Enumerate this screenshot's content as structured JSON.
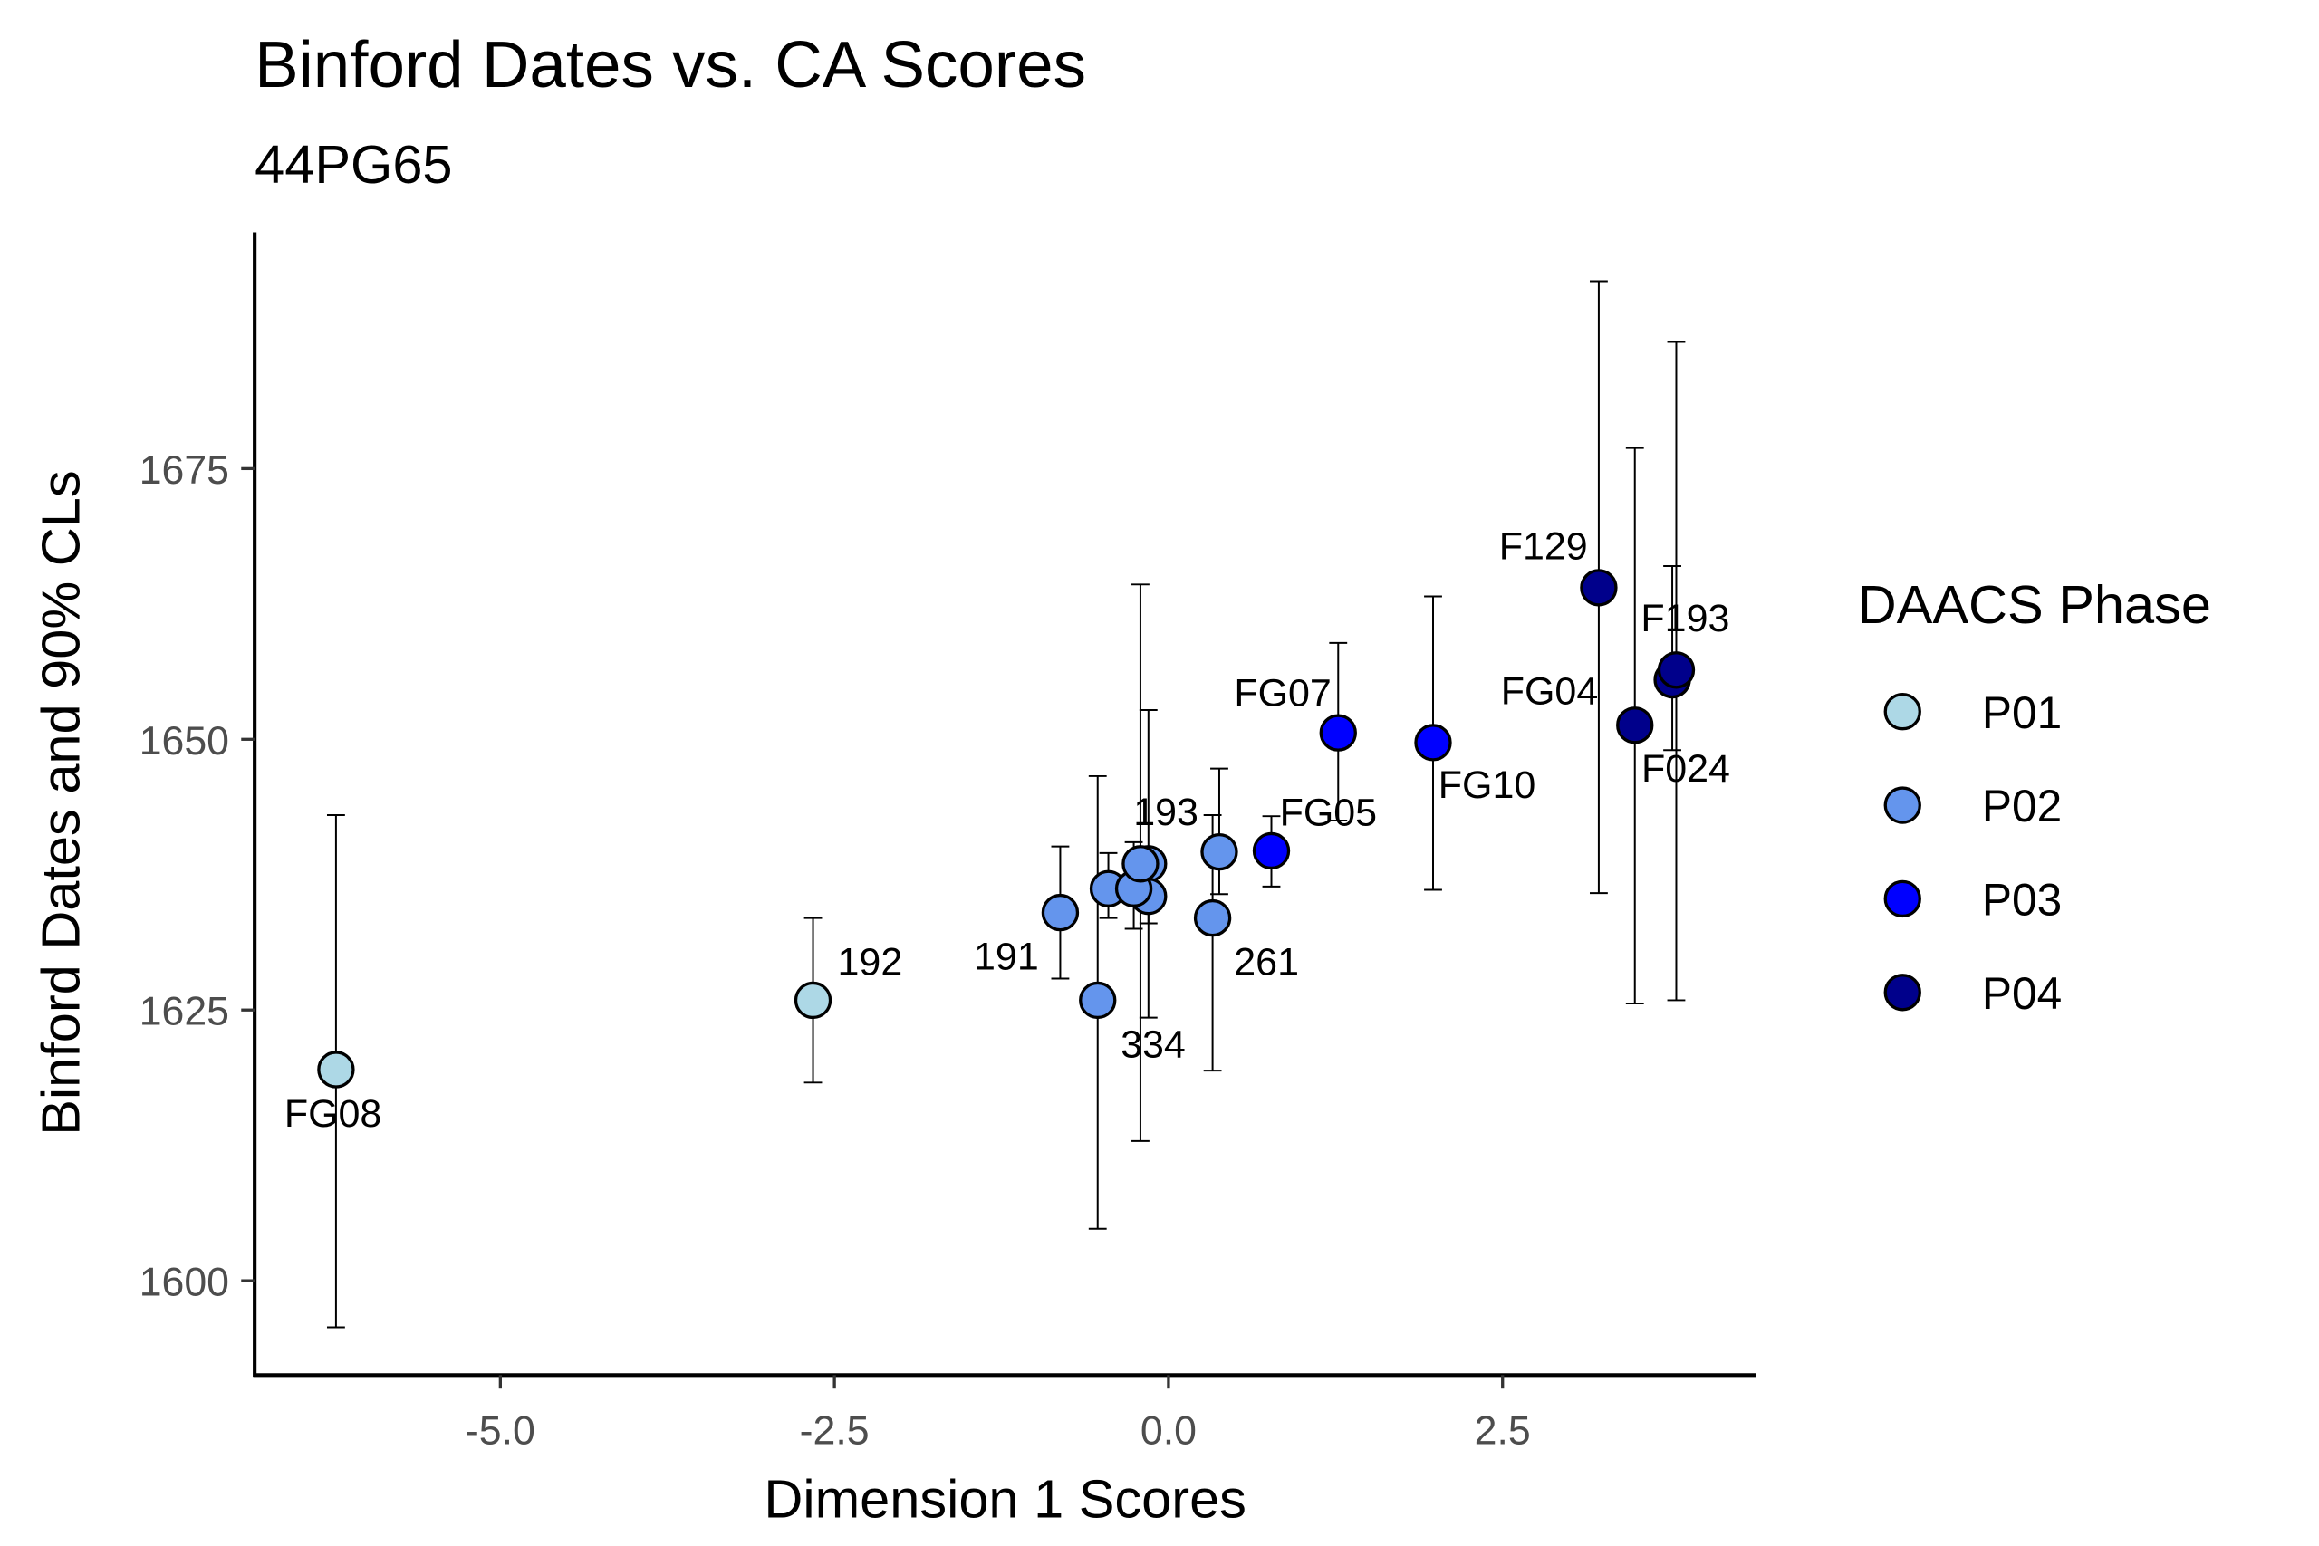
{
  "chart_data": {
    "type": "scatter",
    "title": "Binford Dates vs. CA Scores",
    "subtitle": "44PG65",
    "xlabel": "Dimension 1 Scores",
    "ylabel": "Binford Dates and 90% CLs",
    "xlim": [
      -6.8,
      4.4
    ],
    "ylim": [
      1591,
      1697
    ],
    "xticks": [
      -5.0,
      -2.5,
      0.0,
      2.5
    ],
    "xtick_labels": [
      "-5.0",
      "-2.5",
      "0.0",
      "2.5"
    ],
    "yticks": [
      1600,
      1625,
      1650,
      1675
    ],
    "ytick_labels": [
      "1600",
      "1625",
      "1650",
      "1675"
    ],
    "grid": false,
    "legend": {
      "title": "DAACS Phase",
      "placement": "right",
      "entries": [
        {
          "name": "P01",
          "color": "#ADD8E6"
        },
        {
          "name": "P02",
          "color": "#6495ED"
        },
        {
          "name": "P03",
          "color": "#0000FF"
        },
        {
          "name": "P04",
          "color": "#00008B"
        }
      ]
    },
    "points": [
      {
        "label": "FG08",
        "phase": "P01",
        "x": -6.23,
        "y": 1619.5,
        "lo": 1595.7,
        "hi": 1643.0
      },
      {
        "label": "192",
        "phase": "P01",
        "x": -2.66,
        "y": 1625.9,
        "lo": 1618.3,
        "hi": 1633.5
      },
      {
        "label": "191",
        "phase": "P02",
        "x": -0.81,
        "y": 1634.0,
        "lo": 1627.9,
        "hi": 1640.1
      },
      {
        "label": "334",
        "phase": "P02",
        "x": -0.53,
        "y": 1625.9,
        "lo": 1604.8,
        "hi": 1646.6
      },
      {
        "label": "",
        "phase": "P02",
        "x": -0.45,
        "y": 1636.2,
        "lo": 1633.5,
        "hi": 1639.5
      },
      {
        "label": "",
        "phase": "P02",
        "x": -0.15,
        "y": 1638.5,
        "lo": 1624.3,
        "hi": 1652.7
      },
      {
        "label": "",
        "phase": "P02",
        "x": -0.15,
        "y": 1635.5,
        "lo": 1633.0,
        "hi": 1638.0
      },
      {
        "label": "",
        "phase": "P02",
        "x": -0.26,
        "y": 1636.2,
        "lo": 1632.5,
        "hi": 1640.5
      },
      {
        "label": "193",
        "phase": "P02",
        "x": -0.21,
        "y": 1638.5,
        "lo": 1612.9,
        "hi": 1664.3
      },
      {
        "label": "261",
        "phase": "P02",
        "x": 0.33,
        "y": 1633.5,
        "lo": 1619.4,
        "hi": 1643.0
      },
      {
        "label": "",
        "phase": "P02",
        "x": 0.38,
        "y": 1639.6,
        "lo": 1635.7,
        "hi": 1647.3
      },
      {
        "label": "FG05",
        "phase": "P03",
        "x": 0.77,
        "y": 1639.7,
        "lo": 1636.4,
        "hi": 1642.9
      },
      {
        "label": "FG07",
        "phase": "P03",
        "x": 1.27,
        "y": 1650.6,
        "lo": 1642.5,
        "hi": 1658.9
      },
      {
        "label": "FG10",
        "phase": "P03",
        "x": 1.98,
        "y": 1649.7,
        "lo": 1636.1,
        "hi": 1663.2
      },
      {
        "label": "F129",
        "phase": "P04",
        "x": 3.22,
        "y": 1664.0,
        "lo": 1635.8,
        "hi": 1692.3
      },
      {
        "label": "FG04",
        "phase": "P04",
        "x": 3.49,
        "y": 1651.3,
        "lo": 1625.6,
        "hi": 1676.9
      },
      {
        "label": "F024",
        "phase": "P04",
        "x": 3.77,
        "y": 1655.5,
        "lo": 1649.0,
        "hi": 1666.0
      },
      {
        "label": "F193",
        "phase": "P04",
        "x": 3.8,
        "y": 1656.4,
        "lo": 1625.9,
        "hi": 1686.7
      }
    ]
  }
}
